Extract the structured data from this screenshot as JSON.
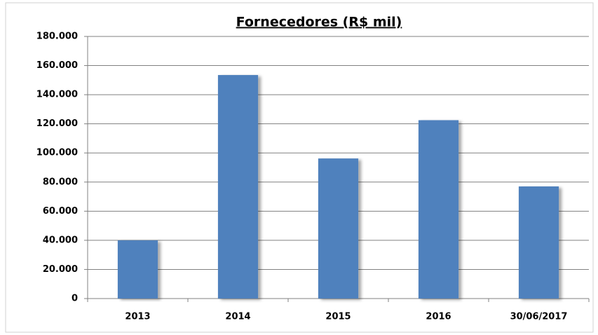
{
  "chart_data": {
    "type": "bar",
    "title": "Fornecedores (R$ mil)",
    "categories": [
      "2013",
      "2014",
      "2015",
      "2016",
      "30/06/2017"
    ],
    "values": [
      40000,
      153500,
      96200,
      122500,
      77000
    ],
    "color": "#4f81bd",
    "ylim": [
      0,
      180000
    ],
    "yticks": [
      0,
      {
        "value": 20000,
        "label": "20.000"
      },
      {
        "value": 40000,
        "label": "40.000"
      },
      {
        "value": 60000,
        "label": "60.000"
      },
      {
        "value": 80000,
        "label": "80.000"
      },
      {
        "value": 100000,
        "label": "100.000"
      },
      {
        "value": 120000,
        "label": "120.000"
      },
      {
        "value": 140000,
        "label": "140.000"
      },
      {
        "value": 160000,
        "label": "160.000"
      },
      {
        "value": 180000,
        "label": "180.000"
      }
    ],
    "grid": true
  }
}
